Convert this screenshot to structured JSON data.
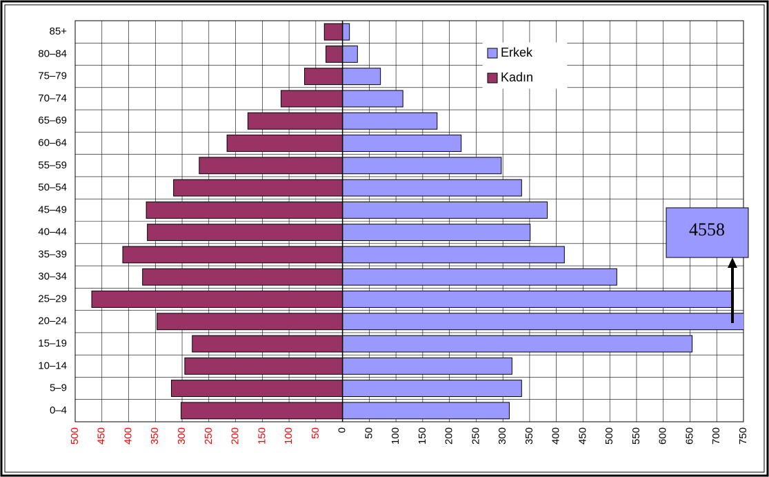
{
  "chart_data": {
    "type": "pyramid",
    "categories": [
      "0–4",
      "5–9",
      "10–14",
      "15–19",
      "20–24",
      "25–29",
      "30–34",
      "35–39",
      "40–44",
      "45–49",
      "50–54",
      "55–59",
      "60–64",
      "65–69",
      "70–74",
      "75–79",
      "80–84",
      "85+"
    ],
    "series": [
      {
        "name": "Erkek",
        "color": "#9999ff",
        "values": [
          312,
          335,
          317,
          654,
          4558,
          729,
          513,
          415,
          351,
          383,
          335,
          297,
          222,
          177,
          113,
          71,
          28,
          13
        ]
      },
      {
        "name": "Kadın",
        "color": "#993366",
        "values": [
          -302,
          -320,
          -295,
          -281,
          -347,
          -469,
          -374,
          -411,
          -365,
          -367,
          -316,
          -268,
          -216,
          -177,
          -115,
          -71,
          -31,
          -34
        ]
      }
    ],
    "xlim": [
      -500,
      750
    ],
    "xticks": [
      {
        "value": -500,
        "label": "500"
      },
      {
        "value": -450,
        "label": "450"
      },
      {
        "value": -400,
        "label": "400"
      },
      {
        "value": -350,
        "label": "350"
      },
      {
        "value": -300,
        "label": "300"
      },
      {
        "value": -250,
        "label": "250"
      },
      {
        "value": -200,
        "label": "200"
      },
      {
        "value": -150,
        "label": "150"
      },
      {
        "value": -100,
        "label": "100"
      },
      {
        "value": -50,
        "label": "50"
      },
      0,
      50,
      100,
      150,
      200,
      250,
      300,
      350,
      400,
      450,
      500,
      550,
      600,
      650,
      700,
      750
    ],
    "negative_tick_color": "#ff0000",
    "grid": true,
    "legend": "upper right",
    "annotation": "4558"
  }
}
